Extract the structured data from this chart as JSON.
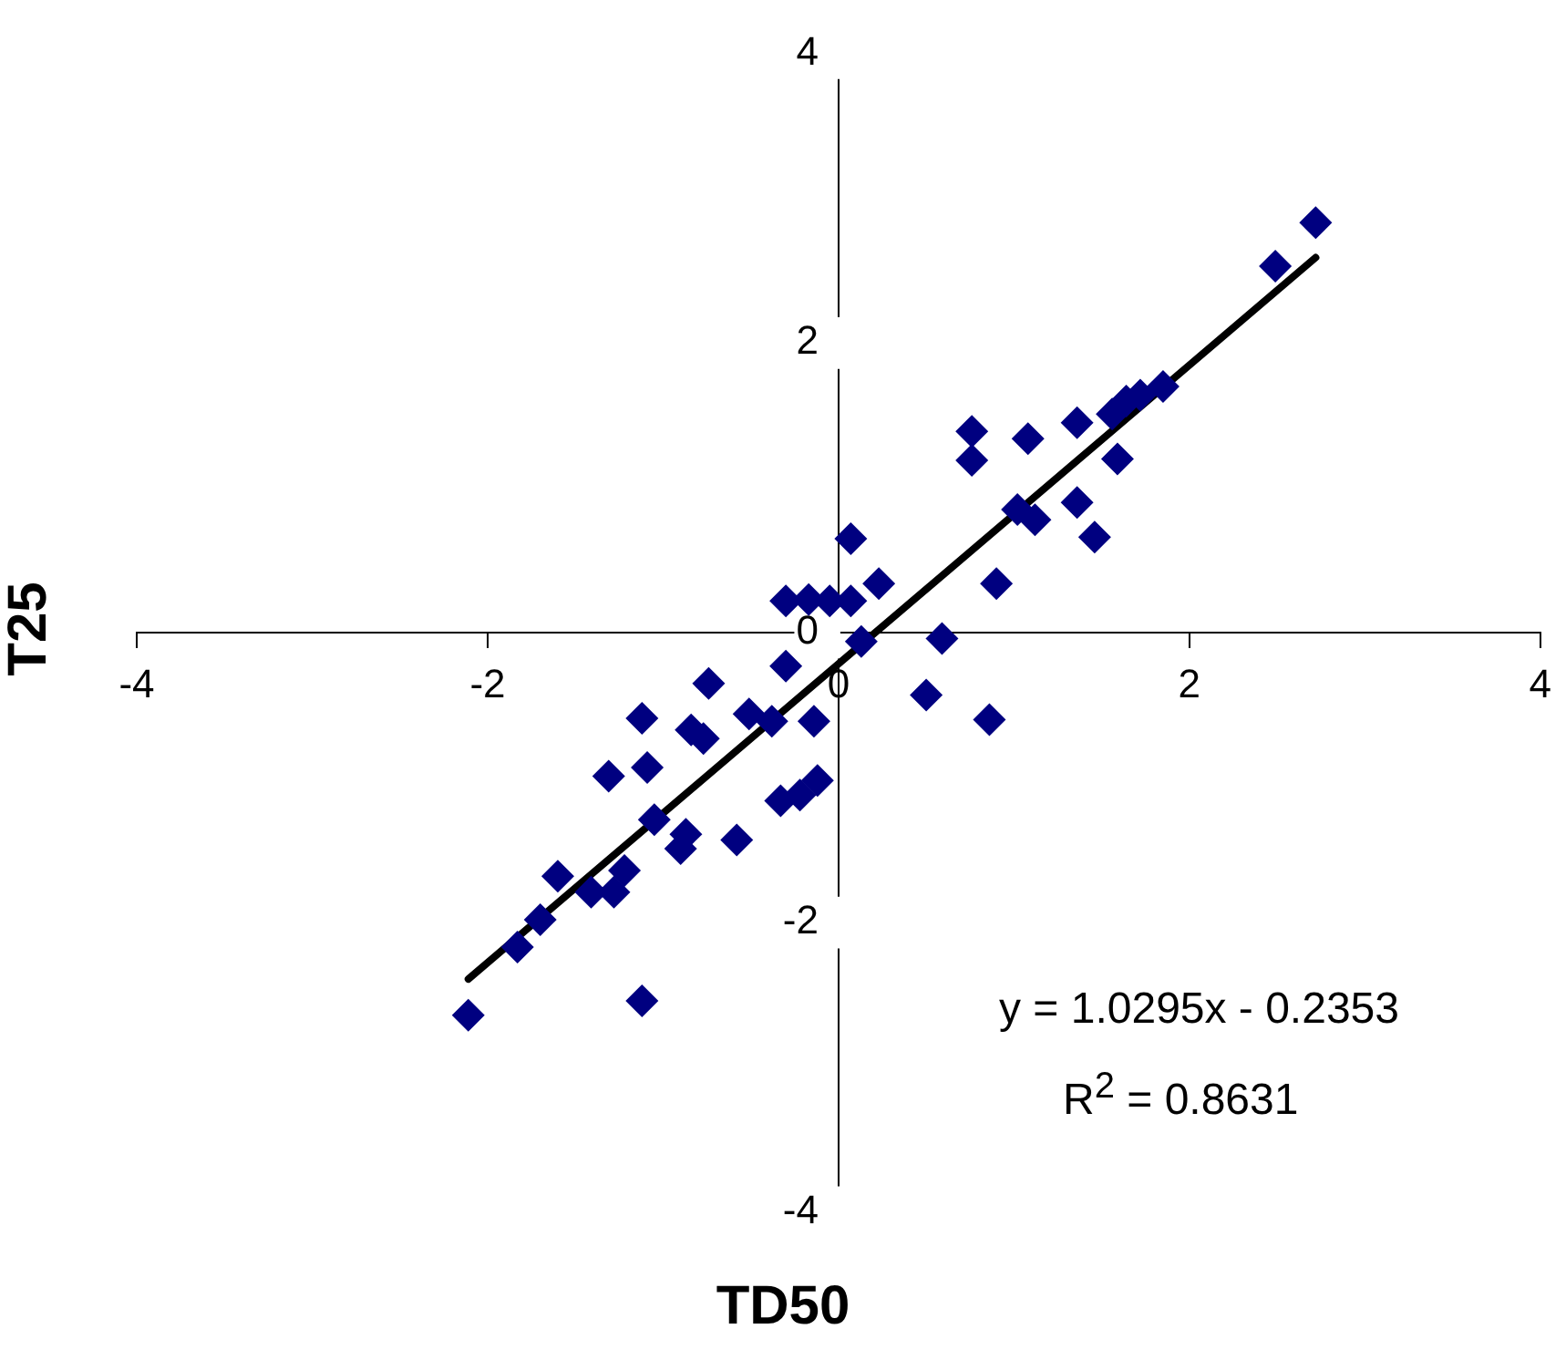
{
  "chart_data": {
    "type": "scatter",
    "xlabel": "TD50",
    "ylabel": "T25",
    "xlim": [
      -4,
      4
    ],
    "xticks": [
      -4,
      -2,
      0,
      2,
      4
    ],
    "ylim": [
      -4,
      4
    ],
    "yticks": [
      -4,
      -2,
      0,
      2,
      4
    ],
    "grid": false,
    "legend": false,
    "marker": "diamond",
    "series": [
      {
        "color": "#000080",
        "x": [
          -2.11,
          -1.83,
          -1.7,
          -1.6,
          -1.41,
          -1.28,
          -1.22,
          -1.31,
          -1.12,
          -1.09,
          -1.12,
          -1.05,
          -0.93,
          -0.9,
          -0.87,
          -0.84,
          -0.77,
          -0.74,
          -0.77,
          -0.58,
          -0.51,
          -0.38,
          -0.33,
          -0.3,
          -0.3,
          -0.22,
          -0.17,
          -0.14,
          -0.12,
          -0.05,
          0.07,
          0.07,
          0.13,
          0.23,
          0.5,
          0.59,
          0.76,
          0.76,
          0.86,
          0.9,
          1.08,
          1.02,
          1.12,
          1.36,
          1.36,
          1.46,
          1.59,
          1.56,
          1.64,
          1.72,
          1.85,
          2.49,
          2.72
        ],
        "values": [
          -2.64,
          -2.17,
          -1.98,
          -1.68,
          -1.79,
          -1.79,
          -1.64,
          -0.99,
          -0.59,
          -0.93,
          -2.54,
          -1.29,
          null,
          -1.49,
          -1.39,
          -0.67,
          null,
          -0.35,
          -0.73,
          -1.43,
          -0.56,
          -0.61,
          -1.16,
          -0.23,
          0.22,
          -1.12,
          0.23,
          -0.61,
          -1.02,
          0.22,
          0.22,
          0.65,
          -0.06,
          0.34,
          -0.43,
          -0.04,
          1.39,
          1.19,
          -0.6,
          0.34,
          1.34,
          0.85,
          0.78,
          0.9,
          1.45,
          0.66,
          1.2,
          1.51,
          1.6,
          1.64,
          1.7,
          2.53,
          2.83
        ]
      },
      {
        "type": "line",
        "color": "#000000",
        "marker": "none",
        "x": [
          -2.11,
          2.72
        ],
        "values": [
          -2.39,
          2.59
        ]
      }
    ],
    "annotations": [
      "y = 1.0295x - 0.2353",
      "R$^{2}$ = 0.8631"
    ]
  }
}
